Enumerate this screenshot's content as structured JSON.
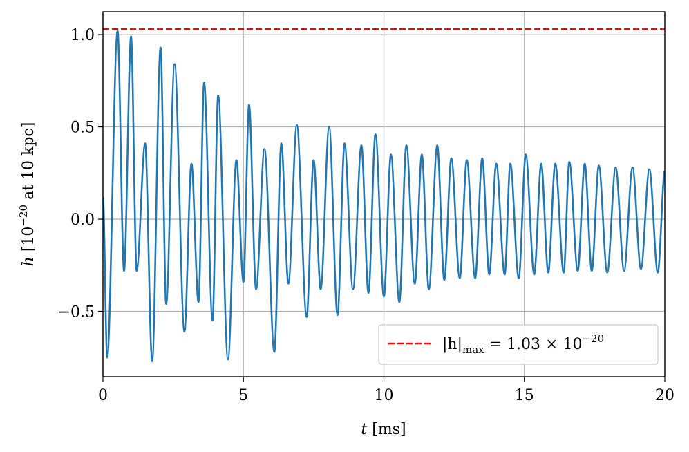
{
  "chart_data": {
    "type": "line",
    "xlabel": [
      "t",
      " [ms]"
    ],
    "ylabel": [
      "h",
      " [10",
      "−20",
      " at 10 kpc]"
    ],
    "xlim": [
      0,
      20
    ],
    "ylim": [
      -0.854,
      1.124
    ],
    "xticks": [
      0,
      5,
      10,
      15,
      20
    ],
    "yticks": [
      {
        "value": -0.5,
        "label": "−0.5"
      },
      {
        "value": 0,
        "label": "0.0"
      },
      0.5,
      {
        "value": 1.0,
        "label": "1.0"
      }
    ],
    "grid": true,
    "legend": "lower right",
    "x": [
      0,
      0.15,
      0.52,
      0.75,
      1.0,
      1.2,
      1.5,
      1.75,
      2.05,
      2.25,
      2.55,
      2.9,
      3.15,
      3.4,
      3.6,
      3.9,
      4.1,
      4.45,
      4.75,
      5.0,
      5.2,
      5.45,
      5.75,
      6.1,
      6.35,
      6.6,
      6.9,
      7.25,
      7.5,
      7.75,
      8.05,
      8.35,
      8.6,
      8.9,
      9.2,
      9.45,
      9.7,
      10.0,
      10.25,
      10.55,
      10.8,
      11.1,
      11.35,
      11.6,
      11.9,
      12.15,
      12.4,
      12.7,
      12.95,
      13.25,
      13.5,
      13.75,
      14.0,
      14.3,
      14.5,
      14.8,
      15.05,
      15.35,
      15.6,
      15.85,
      16.1,
      16.4,
      16.6,
      16.9,
      17.15,
      17.4,
      17.65,
      17.95,
      18.25,
      18.55,
      18.85,
      19.15,
      19.45,
      19.75,
      20.0
    ],
    "series": [
      {
        "color": "#1f77b4",
        "values": [
          0.12,
          -0.75,
          1.02,
          -0.28,
          0.99,
          -0.28,
          0.41,
          -0.77,
          0.93,
          -0.46,
          0.84,
          -0.61,
          0.3,
          -0.45,
          0.74,
          -0.55,
          0.67,
          -0.76,
          0.32,
          -0.34,
          0.62,
          -0.38,
          0.38,
          -0.72,
          0.41,
          -0.35,
          0.51,
          -0.53,
          0.32,
          -0.38,
          0.5,
          -0.52,
          0.41,
          -0.38,
          0.4,
          -0.4,
          0.46,
          -0.42,
          0.35,
          -0.45,
          0.4,
          -0.35,
          0.35,
          -0.38,
          0.4,
          -0.33,
          0.33,
          -0.32,
          0.32,
          -0.32,
          0.33,
          -0.3,
          0.3,
          -0.3,
          0.3,
          -0.32,
          0.35,
          -0.3,
          0.3,
          -0.29,
          0.3,
          -0.29,
          0.31,
          -0.28,
          0.3,
          -0.28,
          0.29,
          -0.29,
          0.28,
          -0.28,
          0.28,
          -0.27,
          0.27,
          -0.29,
          0.26
        ]
      }
    ],
    "hline": {
      "value": 1.03,
      "color": "#ff0000",
      "name": [
        "|h|",
        "max",
        " = 1.03 × 10",
        "−20"
      ]
    }
  }
}
